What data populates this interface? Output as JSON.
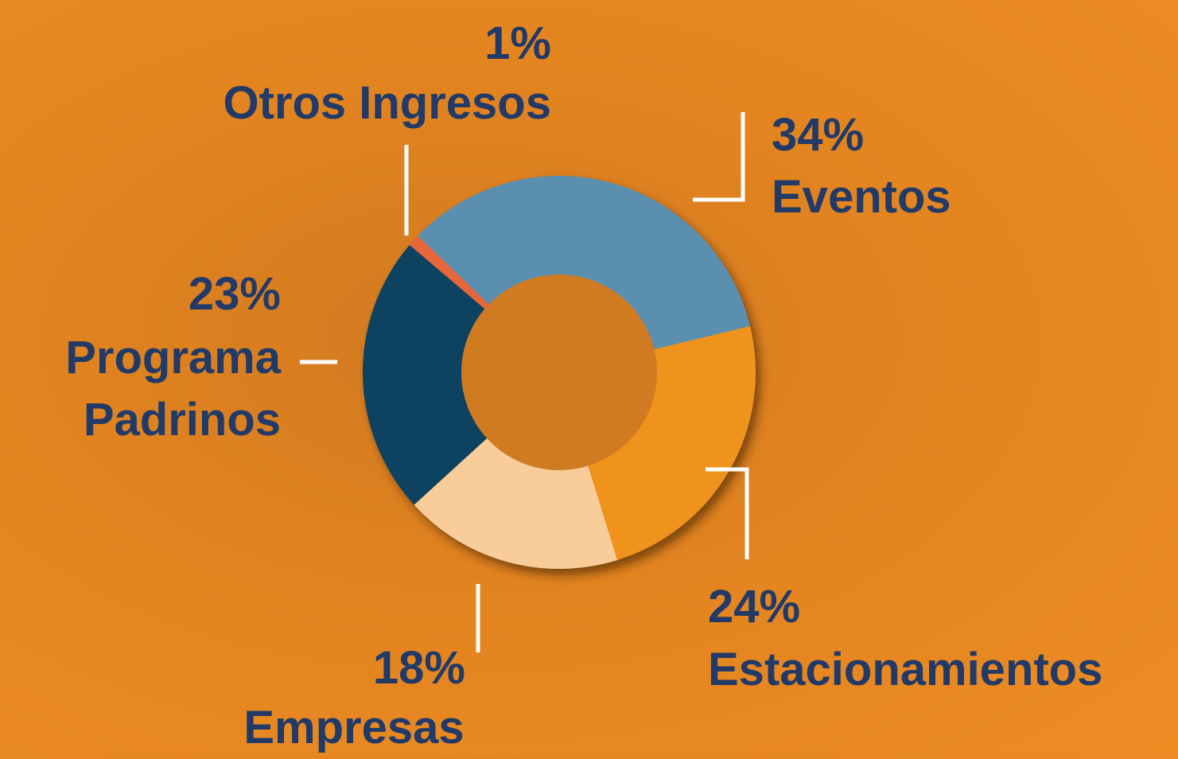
{
  "chart_data": {
    "type": "pie",
    "categories": [
      "Eventos",
      "Estacionamientos",
      "Empresas",
      "Programa Padrinos",
      "Otros Ingresos"
    ],
    "values": [
      34,
      24,
      18,
      23,
      1
    ],
    "value_labels": [
      "34%",
      "24%",
      "18%",
      "23%",
      "1%"
    ],
    "colors": [
      "#5a8fb0",
      "#f0931c",
      "#f8cd9a",
      "#0c4260",
      "#e8663a"
    ]
  }
}
